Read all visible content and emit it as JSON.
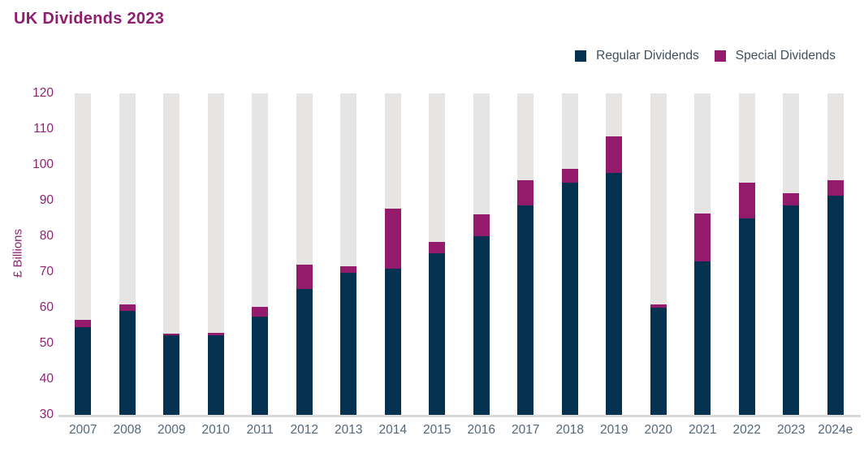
{
  "title": "UK Dividends 2023",
  "legend": {
    "items": [
      {
        "label": "Regular Dividends",
        "color": "#04314f"
      },
      {
        "label": "Special Dividends",
        "color": "#941a6c"
      }
    ]
  },
  "chart_data": {
    "type": "bar",
    "stacked": true,
    "title": "UK Dividends 2023",
    "ylabel": "£ Billions",
    "ylim": [
      30,
      120
    ],
    "yticks": [
      30,
      40,
      50,
      60,
      70,
      80,
      90,
      100,
      110,
      120
    ],
    "grid": false,
    "legend_position": "top-right",
    "categories": [
      "2007",
      "2008",
      "2009",
      "2010",
      "2011",
      "2012",
      "2013",
      "2014",
      "2015",
      "2016",
      "2017",
      "2018",
      "2019",
      "2020",
      "2021",
      "2022",
      "2023",
      "2024e"
    ],
    "series": [
      {
        "name": "Regular Dividends",
        "color": "#04314f",
        "values": [
          54.5,
          59.0,
          52.2,
          52.2,
          57.4,
          65.3,
          69.7,
          70.8,
          75.2,
          79.9,
          88.6,
          94.9,
          97.8,
          60.0,
          72.9,
          85.0,
          88.6,
          91.3
        ]
      },
      {
        "name": "Special Dividends",
        "color": "#941a6c",
        "values": [
          2.0,
          2.0,
          0.5,
          0.7,
          2.9,
          6.8,
          2.0,
          17.0,
          3.1,
          6.3,
          7.1,
          3.9,
          10.2,
          1.0,
          13.5,
          10.0,
          3.5,
          4.4
        ]
      }
    ],
    "totals": [
      56.5,
      61.0,
      52.7,
      52.9,
      60.3,
      72.1,
      71.7,
      87.8,
      78.3,
      86.2,
      95.7,
      98.8,
      108.0,
      61.0,
      86.4,
      95.0,
      92.1,
      95.7
    ],
    "track_color": "#e6e5e4",
    "colors": {
      "title": "#8e1e70",
      "y_axis_text": "#8c2473",
      "x_axis_text": "#54677b",
      "legend_text": "#3e505f",
      "axis_line": "#d9d9d9"
    }
  }
}
